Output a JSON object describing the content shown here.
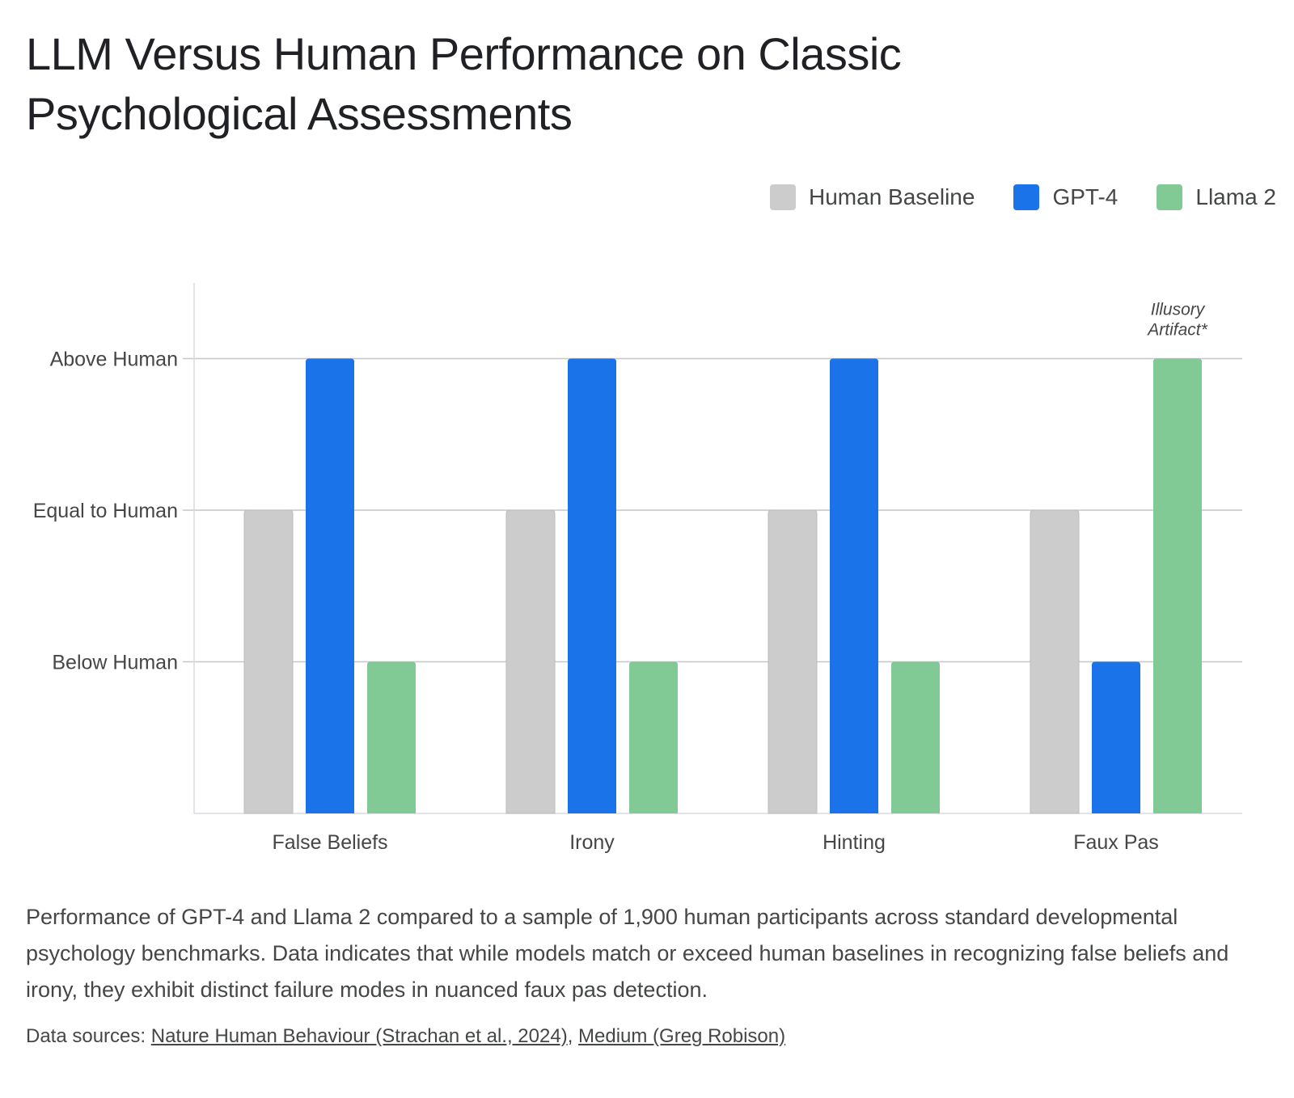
{
  "title": "LLM Versus Human Performance on Classic Psychological Assessments",
  "legend": [
    {
      "name": "Human Baseline",
      "color": "#cccccc"
    },
    {
      "name": "GPT-4",
      "color": "#1a73e8"
    },
    {
      "name": "Llama 2",
      "color": "#81c995"
    }
  ],
  "chart_data": {
    "type": "bar",
    "categories": [
      "False Beliefs",
      "Irony",
      "Hinting",
      "Faux Pas"
    ],
    "series": [
      {
        "name": "Human Baseline",
        "color": "#cccccc",
        "values": [
          2,
          2,
          2,
          2
        ]
      },
      {
        "name": "GPT-4",
        "color": "#1a73e8",
        "values": [
          3,
          3,
          3,
          1
        ]
      },
      {
        "name": "Llama 2",
        "color": "#81c995",
        "values": [
          1,
          1,
          1,
          3
        ]
      }
    ],
    "ylim": [
      0,
      3.5
    ],
    "yticks": [
      {
        "value": 1,
        "label": "Below Human"
      },
      {
        "value": 2,
        "label": "Equal to Human"
      },
      {
        "value": 3,
        "label": "Above Human"
      }
    ],
    "grid": true,
    "legend_position": "top-right",
    "annotations": [
      {
        "category": "Faux Pas",
        "series": "Llama 2",
        "lines": [
          "Illusory",
          "Artifact*"
        ]
      }
    ]
  },
  "caption": "Performance of GPT-4 and Llama 2 compared to a sample of 1,900 human participants across standard developmental psychology benchmarks. Data indicates that while models match or exceed human baselines in recognizing false beliefs and irony, they exhibit distinct failure modes in nuanced faux pas detection.",
  "sources": {
    "prefix": "Data sources: ",
    "links": [
      {
        "text": "Nature Human Behaviour (Strachan et al., 2024)"
      },
      {
        "text": "Medium (Greg Robison)"
      }
    ],
    "separator": ", "
  }
}
